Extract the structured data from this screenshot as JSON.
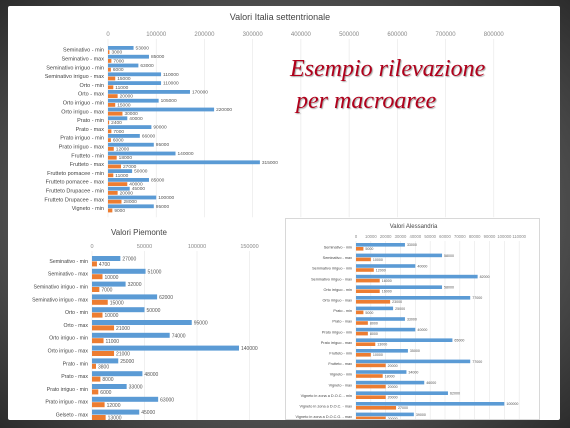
{
  "slide": {
    "title_line1": "Esempio rilevazione",
    "title_line2": "per macroaree",
    "title_color": "#b0001b"
  },
  "colors": {
    "blue": "#5b9bd5",
    "orange": "#ed7d31"
  },
  "chart_data": [
    {
      "type": "bar",
      "orientation": "horizontal",
      "title": "Valori Italia settentrionale",
      "xlim": [
        0,
        900000
      ],
      "xticks": [
        0,
        100000,
        200000,
        300000,
        400000,
        500000,
        600000,
        700000,
        800000
      ],
      "categories": [
        "Seminativo - min",
        "Seminativo - max",
        "Seminativo irriguo - min",
        "Seminativo irriguo - max",
        "Orto - min",
        "Orto - max",
        "Orto irriguo - min",
        "Orto irriguo - max",
        "Prato - min",
        "Prato - max",
        "Prato irriguo - min",
        "Prato irriguo - max",
        "Frutteto - min",
        "Frutteto - max",
        "Frutteto pomacee - min",
        "Frutteto pomacee - max",
        "Frutteto Drupacee - min",
        "Frutteto Drupacee - max",
        "Vigneto - min"
      ],
      "series": [
        {
          "values": [
            53000,
            85000,
            63000,
            110000,
            110000,
            170000,
            105000,
            220000,
            40000,
            90000,
            66000,
            95000,
            140000,
            315000,
            50000,
            85000,
            45000,
            100000,
            95000
          ]
        },
        {
          "values": [
            3000,
            7000,
            6000,
            15000,
            11000,
            20000,
            15000,
            30000,
            2400,
            7000,
            6000,
            12000,
            18000,
            27000,
            11000,
            40000,
            20000,
            28000,
            9000
          ]
        }
      ]
    },
    {
      "type": "bar",
      "orientation": "horizontal",
      "title": "Valori Piemonte",
      "xlim": [
        0,
        160000
      ],
      "xticks": [
        0,
        50000,
        100000,
        150000
      ],
      "categories": [
        "Seminativo - min",
        "Seminativo - max",
        "Seminativo irriguo - min",
        "Seminativo irriguo - max",
        "Orto - min",
        "Orto - max",
        "Orto irriguo - min",
        "Orto irriguo - max",
        "Prato - min",
        "Prato - max",
        "Prato irriguo - min",
        "Prato irriguo - max",
        "Gelseto - max"
      ],
      "series": [
        {
          "values": [
            27000,
            51000,
            32000,
            62000,
            50000,
            95000,
            74000,
            140000,
            25000,
            48000,
            33000,
            63000,
            45000
          ]
        },
        {
          "values": [
            4700,
            10000,
            7000,
            15000,
            10000,
            21000,
            11000,
            21000,
            3800,
            8000,
            6000,
            12000,
            13000
          ]
        }
      ]
    },
    {
      "type": "bar",
      "orientation": "horizontal",
      "title": "Valori Alessandria",
      "xlim": [
        0,
        120000
      ],
      "xticks": [
        0,
        10000,
        20000,
        30000,
        40000,
        50000,
        60000,
        70000,
        80000,
        90000,
        100000,
        110000
      ],
      "categories": [
        "Seminativo - min",
        "Seminativo - max",
        "Seminativo irriguo - min",
        "Seminativo irriguo - max",
        "Orto irriguo - min",
        "Orto irriguo - max",
        "Prato - min",
        "Prato - max",
        "Prato irriguo - min",
        "Prato irriguo - max",
        "Frutteto - min",
        "Frutteto - max",
        "Vigneto - min",
        "Vigneto - max",
        "Vigneto in zona a D.O.C. - min",
        "Vigneto in zona a D.O.C. - max",
        "Vigneto in zona a D.O.C.G. - max"
      ],
      "series": [
        {
          "values": [
            33000,
            58000,
            40000,
            82000,
            58000,
            77000,
            25000,
            33000,
            40000,
            65000,
            35000,
            77000,
            34000,
            46000,
            62000,
            100000,
            39000
          ]
        },
        {
          "values": [
            5000,
            10000,
            12000,
            16000,
            16000,
            23000,
            5000,
            8000,
            8000,
            13000,
            10000,
            20000,
            18000,
            20000,
            20000,
            27000,
            20000
          ]
        }
      ]
    }
  ]
}
